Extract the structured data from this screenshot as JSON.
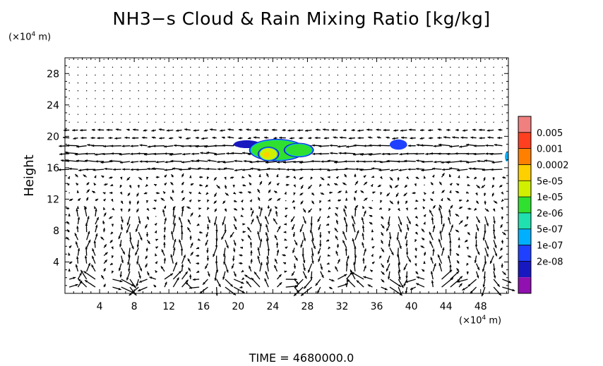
{
  "title": "NH3−s Cloud & Rain Mixing Ratio [kg/kg]",
  "time_label": "TIME  =  4680000.0",
  "chart_data": {
    "type": "heatmap",
    "title": "NH3−s Cloud & Rain Mixing Ratio [kg/kg]",
    "xlabel": "",
    "ylabel": "Height",
    "x_unit": "(×10⁴ m)",
    "y_unit": "(×10⁴ m)",
    "xlim": [
      0,
      51.2
    ],
    "ylim": [
      0,
      30
    ],
    "xticks": [
      4,
      8,
      12,
      16,
      20,
      24,
      28,
      32,
      36,
      40,
      44,
      48
    ],
    "yticks": [
      4,
      8,
      12,
      16,
      20,
      24,
      28
    ],
    "colorbar": {
      "labels": [
        "0.005",
        "0.001",
        "0.0002",
        "5e-05",
        "1e-05",
        "2e-06",
        "5e-07",
        "1e-07",
        "2e-08"
      ],
      "colors": [
        "#f08080",
        "#ff4020",
        "#ff8000",
        "#ffd000",
        "#d0f000",
        "#30e030",
        "#20e0b0",
        "#00b0ff",
        "#2040ff",
        "#1818c0",
        "#9010b0"
      ]
    },
    "cloud_patches": [
      {
        "x": [
          19.5,
          22.5
        ],
        "y": [
          18.5,
          19.5
        ],
        "level": "2e-08"
      },
      {
        "x": [
          21.5,
          27.5
        ],
        "y": [
          17.0,
          19.5
        ],
        "level": "1e-05"
      },
      {
        "x": [
          22.5,
          24.5
        ],
        "y": [
          17.0,
          18.5
        ],
        "level": "5e-05"
      },
      {
        "x": [
          25.5,
          28.5
        ],
        "y": [
          17.5,
          19.0
        ],
        "level": "1e-05"
      },
      {
        "x": [
          37.5,
          39.5
        ],
        "y": [
          18.3,
          19.6
        ],
        "level": "1e-07"
      },
      {
        "x": [
          50.8,
          51.2
        ],
        "y": [
          16.8,
          18.0
        ],
        "level": "5e-07"
      }
    ],
    "vectors": "wind vectors over full domain"
  }
}
